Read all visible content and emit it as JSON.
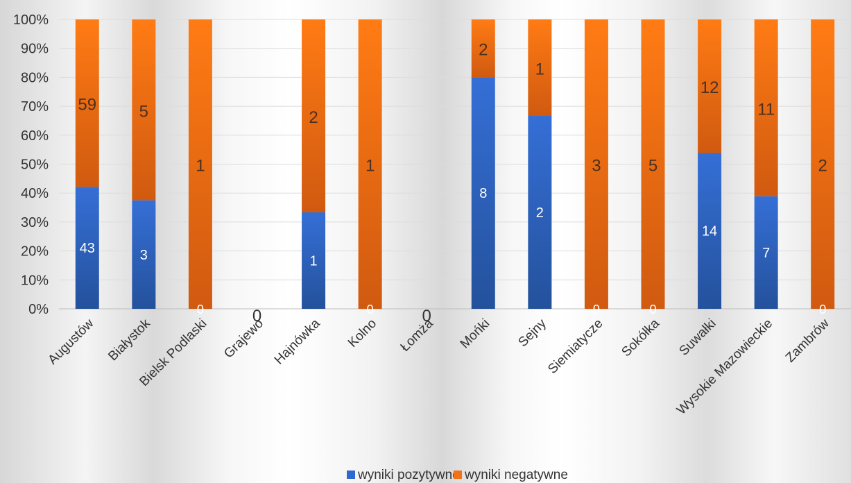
{
  "chart_data": {
    "type": "bar",
    "stacked": "percent",
    "categories": [
      "Augustów",
      "Białystok",
      "Bielsk Podlaski",
      "Grajewo",
      "Hajnówka",
      "Kolno",
      "Łomża",
      "Mońki",
      "Sejny",
      "Siemiatycze",
      "Sokółka",
      "Suwałki",
      "Wysokie Mazowieckie",
      "Zambrów"
    ],
    "series": [
      {
        "name": "wyniki pozytywne",
        "color": "#2f69cf",
        "values": [
          43,
          3,
          0,
          0,
          1,
          0,
          0,
          8,
          2,
          0,
          0,
          14,
          7,
          0
        ]
      },
      {
        "name": "wyniki negatywne",
        "color": "#f47216",
        "values": [
          59,
          5,
          1,
          0,
          2,
          1,
          0,
          2,
          1,
          3,
          5,
          12,
          11,
          2
        ]
      }
    ],
    "data_labels": [
      [
        "43",
        "3",
        "0",
        "0",
        "1",
        "0",
        "0",
        "8",
        "2",
        "0",
        "0",
        "14",
        "7",
        "0"
      ],
      [
        "59",
        "5",
        "1",
        "",
        "2",
        "1",
        "",
        "2",
        "1",
        "3",
        "5",
        "12",
        "11",
        "2"
      ]
    ],
    "y_ticks": [
      "0%",
      "10%",
      "20%",
      "30%",
      "40%",
      "50%",
      "60%",
      "70%",
      "80%",
      "90%",
      "100%"
    ],
    "ylim": [
      0,
      100
    ],
    "grid": true,
    "legend_position": "bottom"
  }
}
